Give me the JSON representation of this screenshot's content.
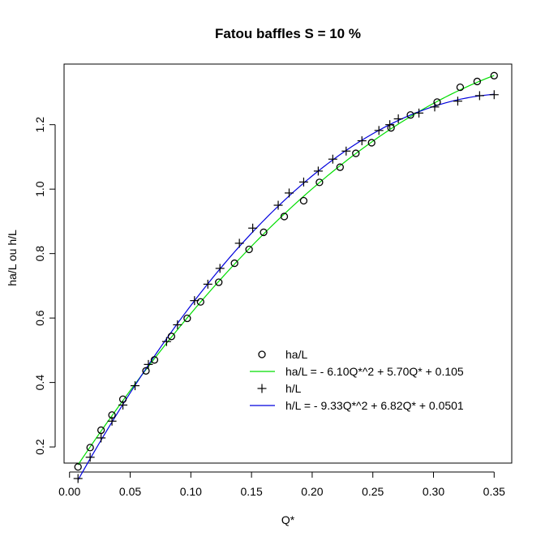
{
  "chart_data": {
    "type": "scatter",
    "title": "Fatou baffles S = 10 %",
    "xlabel": "Q*",
    "ylabel": "ha/L ou h/L",
    "xlim": [
      -0.0045,
      0.3645
    ],
    "ylim": [
      0.1499,
      1.388
    ],
    "xticks": [
      0.0,
      0.05,
      0.1,
      0.15,
      0.2,
      0.25,
      0.3,
      0.35
    ],
    "xtick_labels": [
      "0.00",
      "0.05",
      "0.10",
      "0.15",
      "0.20",
      "0.25",
      "0.30",
      "0.35"
    ],
    "yticks": [
      0.2,
      0.4,
      0.6,
      0.8,
      1.0,
      1.2
    ],
    "ytick_labels": [
      "0.2",
      "0.4",
      "0.6",
      "0.8",
      "1.0",
      "1.2"
    ],
    "grid": false,
    "legend_position": "bottom-right",
    "series": [
      {
        "name": "ha/L",
        "kind": "points",
        "marker": "circle",
        "color": "#000000",
        "x": [
          0.007,
          0.017,
          0.026,
          0.035,
          0.044,
          0.063,
          0.07,
          0.084,
          0.097,
          0.108,
          0.123,
          0.136,
          0.148,
          0.16,
          0.177,
          0.193,
          0.206,
          0.223,
          0.236,
          0.249,
          0.265,
          0.281,
          0.303,
          0.322,
          0.336,
          0.35
        ],
        "y": [
          0.138,
          0.198,
          0.252,
          0.299,
          0.348,
          0.436,
          0.47,
          0.543,
          0.599,
          0.65,
          0.711,
          0.77,
          0.813,
          0.866,
          0.915,
          0.964,
          1.021,
          1.068,
          1.111,
          1.144,
          1.19,
          1.23,
          1.27,
          1.316,
          1.334,
          1.352
        ]
      },
      {
        "name": "ha/L = - 6.10Q*^2 + 5.70Q* + 0.105",
        "kind": "fit",
        "color": "#00dd00",
        "coefficients": [
          -6.1,
          5.7,
          0.105
        ],
        "range": [
          0.007,
          0.35
        ]
      },
      {
        "name": "h/L",
        "kind": "points",
        "marker": "plus",
        "color": "#000000",
        "x": [
          0.007,
          0.017,
          0.026,
          0.035,
          0.044,
          0.054,
          0.065,
          0.08,
          0.089,
          0.103,
          0.114,
          0.124,
          0.14,
          0.151,
          0.172,
          0.181,
          0.193,
          0.205,
          0.217,
          0.228,
          0.241,
          0.255,
          0.264,
          0.271,
          0.288,
          0.301,
          0.32,
          0.338,
          0.35
        ],
        "y": [
          0.102,
          0.168,
          0.228,
          0.28,
          0.33,
          0.39,
          0.456,
          0.527,
          0.579,
          0.654,
          0.705,
          0.754,
          0.832,
          0.879,
          0.95,
          0.988,
          1.022,
          1.056,
          1.093,
          1.118,
          1.15,
          1.182,
          1.2,
          1.218,
          1.236,
          1.255,
          1.273,
          1.29,
          1.293
        ]
      },
      {
        "name": "h/L = - 9.33Q*^2 + 6.82Q* + 0.0501",
        "kind": "fit",
        "color": "#0000dd",
        "coefficients": [
          -9.33,
          6.82,
          0.0501
        ],
        "range": [
          0.007,
          0.35
        ]
      }
    ]
  }
}
